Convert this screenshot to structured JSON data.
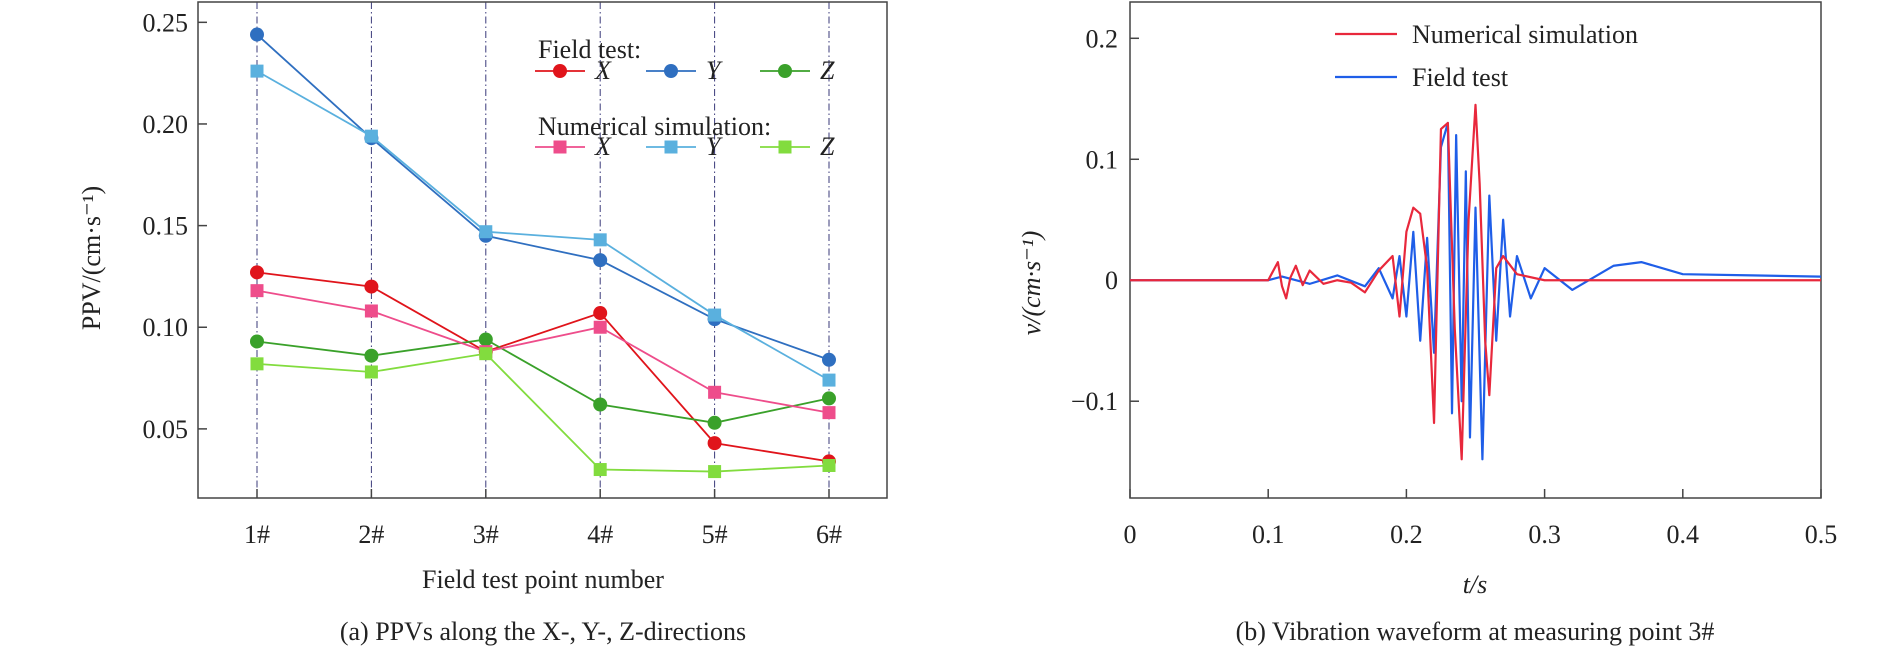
{
  "chart_data": [
    {
      "type": "line",
      "caption": "(a) PPVs along the X-, Y-, Z-directions",
      "xlabel": "Field test point number",
      "ylabel": "PPV/(cm·s⁻¹)",
      "categories": [
        "1#",
        "2#",
        "3#",
        "4#",
        "5#",
        "6#"
      ],
      "ylim": [
        0.016,
        0.26
      ],
      "yticks": [
        "0.05",
        "0.10",
        "0.15",
        "0.20",
        "0.25"
      ],
      "grid": "vertical dash-dot lines at each test point",
      "legend": {
        "position": "top-right",
        "group1": "Field test:",
        "group2": "Numerical simulation:"
      },
      "series": [
        {
          "name": "X",
          "group": "Field test",
          "marker": "circle",
          "color": "#e0141b",
          "values": [
            0.127,
            0.12,
            0.088,
            0.107,
            0.043,
            0.034
          ]
        },
        {
          "name": "Y",
          "group": "Field test",
          "marker": "circle",
          "color": "#2f6fc0",
          "values": [
            0.244,
            0.193,
            0.145,
            0.133,
            0.104,
            0.084
          ]
        },
        {
          "name": "Z",
          "group": "Field test",
          "marker": "circle",
          "color": "#3aa12a",
          "values": [
            0.093,
            0.086,
            0.094,
            0.062,
            0.053,
            0.065
          ]
        },
        {
          "name": "X",
          "group": "Numerical simulation",
          "marker": "square",
          "color": "#ee4d8b",
          "values": [
            0.118,
            0.108,
            0.088,
            0.1,
            0.068,
            0.058
          ]
        },
        {
          "name": "Y",
          "group": "Numerical simulation",
          "marker": "square",
          "color": "#5ab0de",
          "values": [
            0.226,
            0.194,
            0.147,
            0.143,
            0.106,
            0.074
          ]
        },
        {
          "name": "Z",
          "group": "Numerical simulation",
          "marker": "square",
          "color": "#82dc3e",
          "values": [
            0.082,
            0.078,
            0.087,
            0.03,
            0.029,
            0.032
          ]
        }
      ]
    },
    {
      "type": "line",
      "caption": "(b) Vibration waveform at measuring point 3#",
      "xlabel": "t/s",
      "ylabel": "v/(cm·s⁻¹)",
      "xlim": [
        0,
        0.5
      ],
      "ylim": [
        -0.18,
        0.23
      ],
      "xticks": [
        "0",
        "0.1",
        "0.2",
        "0.3",
        "0.4",
        "0.5"
      ],
      "yticks": [
        "−0.1",
        "0",
        "0.1",
        "0.2"
      ],
      "legend": {
        "position": "top-right"
      },
      "series": [
        {
          "name": "Numerical simulation",
          "color": "#e8283c",
          "x": [
            0,
            0.1,
            0.107,
            0.11,
            0.113,
            0.116,
            0.12,
            0.125,
            0.13,
            0.14,
            0.15,
            0.16,
            0.17,
            0.18,
            0.19,
            0.195,
            0.2,
            0.205,
            0.21,
            0.215,
            0.22,
            0.225,
            0.23,
            0.235,
            0.24,
            0.245,
            0.25,
            0.253,
            0.257,
            0.26,
            0.265,
            0.27,
            0.28,
            0.3,
            0.5
          ],
          "y": [
            0,
            0,
            0.015,
            -0.005,
            -0.015,
            0.002,
            0.012,
            -0.004,
            0.008,
            -0.003,
            0,
            -0.002,
            -0.01,
            0.008,
            0.02,
            -0.03,
            0.04,
            0.06,
            0.055,
            0.01,
            -0.118,
            0.125,
            0.13,
            -0.04,
            -0.148,
            0.05,
            0.145,
            0.08,
            -0.05,
            -0.095,
            0.01,
            0.02,
            0.005,
            0,
            0
          ]
        },
        {
          "name": "Field test",
          "color": "#1f5ee8",
          "x": [
            0,
            0.1,
            0.11,
            0.13,
            0.15,
            0.17,
            0.18,
            0.19,
            0.195,
            0.2,
            0.205,
            0.21,
            0.215,
            0.22,
            0.225,
            0.23,
            0.233,
            0.236,
            0.24,
            0.243,
            0.246,
            0.25,
            0.255,
            0.26,
            0.265,
            0.27,
            0.275,
            0.28,
            0.29,
            0.3,
            0.32,
            0.35,
            0.37,
            0.4,
            0.45,
            0.5
          ],
          "y": [
            0,
            0,
            0.003,
            -0.003,
            0.004,
            -0.005,
            0.01,
            -0.015,
            0.02,
            -0.03,
            0.04,
            -0.05,
            0.035,
            -0.06,
            0.11,
            0.13,
            -0.11,
            0.12,
            -0.1,
            0.09,
            -0.13,
            0.06,
            -0.148,
            0.07,
            -0.05,
            0.05,
            -0.03,
            0.02,
            -0.015,
            0.01,
            -0.008,
            0.012,
            0.015,
            0.005,
            0.004,
            0.003
          ]
        }
      ]
    }
  ]
}
